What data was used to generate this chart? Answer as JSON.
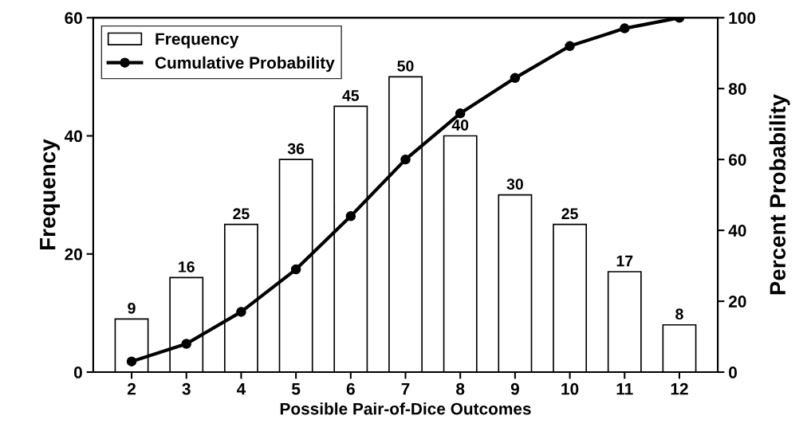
{
  "chart_data": {
    "type": "bar",
    "xlabel": "Possible Pair-of-Dice Outcomes",
    "ylabel": "Frequency",
    "y2label": "Percent Probability",
    "categories": [
      "2",
      "3",
      "4",
      "5",
      "6",
      "7",
      "8",
      "9",
      "10",
      "11",
      "12"
    ],
    "series": [
      {
        "name": "Frequency",
        "type": "bar",
        "color": "#ffffff",
        "values": [
          9,
          16,
          25,
          36,
          45,
          50,
          40,
          30,
          25,
          17,
          8
        ],
        "data_labels": true
      },
      {
        "name": "Cumulative Probability",
        "type": "line",
        "axis": "y2",
        "color": "#000000",
        "marker": "circle",
        "line_style": "solid",
        "values": [
          3,
          8,
          17,
          29,
          44,
          60,
          73,
          83,
          92,
          97,
          100
        ]
      }
    ],
    "ylim": [
      0,
      60
    ],
    "yticks": [
      0,
      20,
      40,
      60
    ],
    "y2lim": [
      0,
      100
    ],
    "y2ticks": [
      0,
      20,
      40,
      60,
      80,
      100
    ],
    "grid": false,
    "legend": "top left"
  }
}
